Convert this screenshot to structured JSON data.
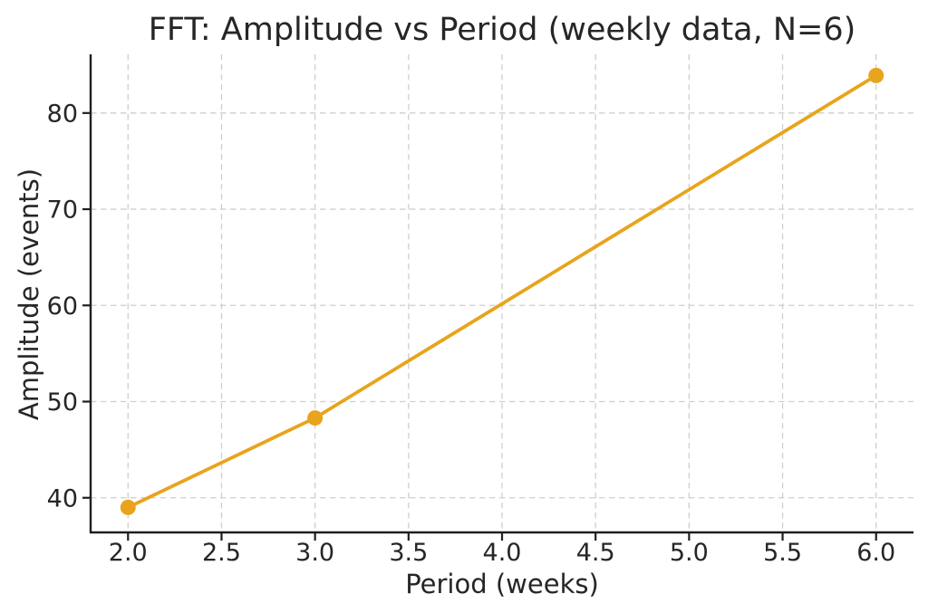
{
  "chart_data": {
    "type": "line",
    "title": "FFT: Amplitude vs Period (weekly data, N=6)",
    "xlabel": "Period (weeks)",
    "ylabel": "Amplitude (events)",
    "x": [
      2.0,
      3.0,
      6.0
    ],
    "y": [
      39.0,
      48.3,
      83.9
    ],
    "xlim": [
      1.8,
      6.2
    ],
    "ylim": [
      36.4,
      86.1
    ],
    "xticks": [
      2.0,
      2.5,
      3.0,
      3.5,
      4.0,
      4.5,
      5.0,
      5.5,
      6.0
    ],
    "xtick_labels": [
      "2.0",
      "2.5",
      "3.0",
      "3.5",
      "4.0",
      "4.5",
      "5.0",
      "5.5",
      "6.0"
    ],
    "yticks": [
      40,
      50,
      60,
      70,
      80
    ],
    "ytick_labels": [
      "40",
      "50",
      "60",
      "70",
      "80"
    ],
    "grid": true,
    "grid_style": "dashed",
    "legend_visible": false,
    "marker": "circle",
    "colors": {
      "line": "#E8A41C",
      "marker": "#E8A41C",
      "grid": "#CFCFCF",
      "axis": "#1F1F1F",
      "text": "#262626",
      "background": "#FFFFFF"
    }
  }
}
